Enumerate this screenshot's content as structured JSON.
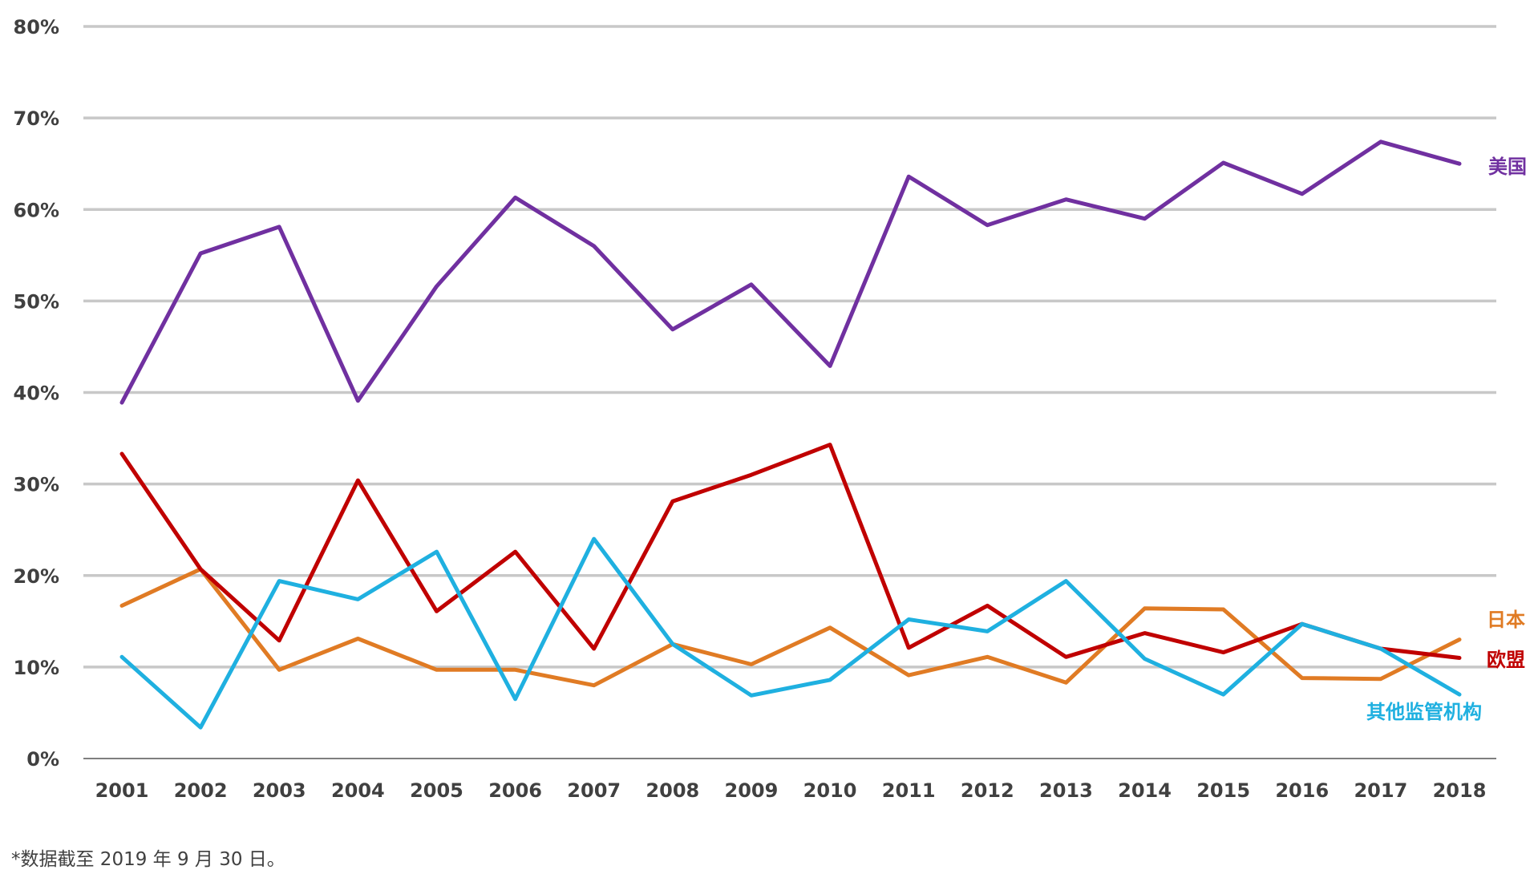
{
  "chart_data": {
    "type": "line",
    "title": "",
    "xlabel": "",
    "ylabel": "",
    "ylim": [
      0,
      80
    ],
    "grid": true,
    "legend": "inline labels at line ends (right)",
    "y_ticks": [
      "0%",
      "10%",
      "20%",
      "30%",
      "40%",
      "50%",
      "60%",
      "70%",
      "80%"
    ],
    "categories": [
      "2001",
      "2002",
      "2003",
      "2004",
      "2005",
      "2006",
      "2007",
      "2008",
      "2009",
      "2010",
      "2011",
      "2012",
      "2013",
      "2014",
      "2015",
      "2016",
      "2017",
      "2018"
    ],
    "series": [
      {
        "name": "美国",
        "color": "#7030a0",
        "values": [
          38.9,
          55.2,
          58.1,
          39.1,
          51.6,
          61.3,
          56.0,
          46.9,
          51.8,
          42.9,
          63.6,
          58.3,
          61.1,
          59.0,
          65.1,
          61.7,
          67.4,
          65.0
        ]
      },
      {
        "name": "日本",
        "color": "#e07b24",
        "values": [
          16.7,
          20.7,
          9.7,
          13.1,
          9.7,
          9.7,
          8.0,
          12.5,
          10.3,
          14.3,
          9.1,
          11.1,
          8.3,
          16.4,
          16.3,
          8.8,
          8.7,
          13.0
        ]
      },
      {
        "name": "欧盟",
        "color": "#c00000",
        "values": [
          33.3,
          20.7,
          12.9,
          30.4,
          16.1,
          22.6,
          12.0,
          28.1,
          31.0,
          34.3,
          12.1,
          16.7,
          11.1,
          13.7,
          11.6,
          14.7,
          12.0,
          11.0
        ]
      },
      {
        "name": "其他监管机构",
        "color": "#1fb0e0",
        "values": [
          11.1,
          3.4,
          19.4,
          17.4,
          22.6,
          6.5,
          24.0,
          12.5,
          6.9,
          8.6,
          15.2,
          13.9,
          19.4,
          10.9,
          7.0,
          14.7,
          12.0,
          7.0
        ]
      }
    ]
  },
  "footnote": "*数据截至 2019 年 9 月 30 日。"
}
